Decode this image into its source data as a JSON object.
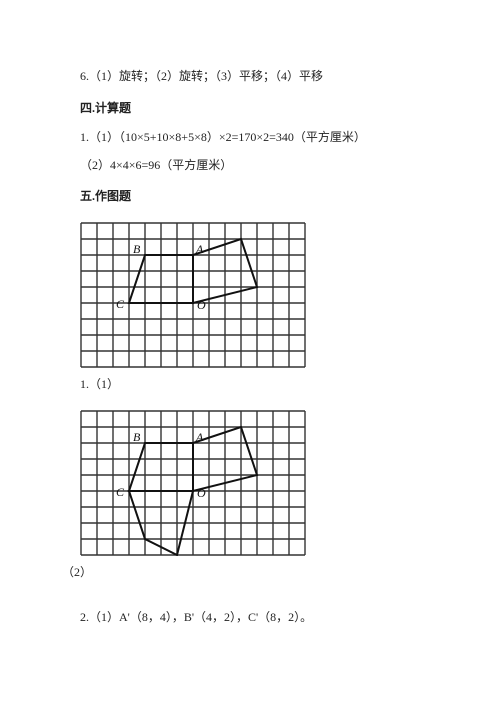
{
  "answer6": "6.（1）旋转；（2）旋转；（3）平移；（4）平移",
  "section4_heading": "四.计算题",
  "calc1": "1.（1）（10×5+10×8+5×8）×2=170×2=340（平方厘米）",
  "calc2": "（2）4×4×6=96（平方厘米）",
  "section5_heading": "五.作图题",
  "label1_1": "1.（1）",
  "label1_2": "（2）",
  "answer2": "2.（1）A'（8，4），B'（4，2），C'（8，2）。",
  "grid": {
    "cols": 14,
    "rows": 9,
    "cell": 16,
    "stroke": "#333",
    "stroke_width": 1.4
  },
  "shape_common": {
    "stroke": "#111",
    "stroke_width": 2
  },
  "labels": {
    "B": "B",
    "A": "A",
    "C": "C",
    "O": "O",
    "font": "italic 12px 'Times New Roman', serif",
    "fill": "#111"
  },
  "fig1": {
    "B": [
      4,
      2
    ],
    "A": [
      7,
      2
    ],
    "C": [
      3,
      5
    ],
    "O": [
      7,
      5
    ],
    "right_poly_extra": [
      [
        10,
        1
      ],
      [
        11,
        4
      ]
    ],
    "label_offsets": {
      "B": [
        -12,
        -2
      ],
      "A": [
        3,
        -2
      ],
      "C": [
        -13,
        5
      ],
      "O": [
        4,
        6
      ]
    }
  },
  "fig2": {
    "B": [
      4,
      2
    ],
    "A": [
      7,
      2
    ],
    "C": [
      3,
      5
    ],
    "O": [
      7,
      5
    ],
    "right_poly_extra": [
      [
        10,
        1
      ],
      [
        11,
        4
      ]
    ],
    "below_poly": [
      [
        4,
        8
      ],
      [
        6,
        9
      ]
    ],
    "label_offsets": {
      "B": [
        -12,
        -2
      ],
      "A": [
        3,
        -2
      ],
      "C": [
        -13,
        5
      ],
      "O": [
        4,
        6
      ]
    }
  }
}
